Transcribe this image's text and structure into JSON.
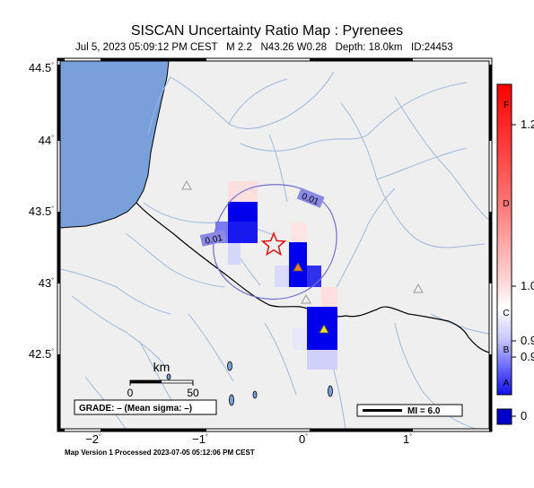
{
  "title": "SISCAN Uncertainty Ratio Map : Pyrenees",
  "subtitle": {
    "date": "Jul  5, 2023 05:09:12 PM CEST",
    "magnitude": "M 2.2",
    "location": "N43.26 W0.28",
    "depth": "Depth: 18.0km",
    "id": "ID:24453"
  },
  "footer": "Map Version 1 Processed 2023-07-05 05:12:06 PM CEST",
  "lat_labels": [
    "44.5",
    "44",
    "43.5",
    "43",
    "42.5"
  ],
  "lon_labels": [
    "−2",
    "−1",
    "0",
    "1"
  ],
  "contour_labels": [
    "0.01",
    "0.01"
  ],
  "scale": {
    "unit": "km",
    "min": "0",
    "max": "50"
  },
  "grade_text": "GRADE: – (Mean sigma: –)",
  "mi_legend": "MI = 6.0",
  "colorbar": {
    "grade_letters": [
      "F",
      "D",
      "C",
      "B",
      "A"
    ],
    "values": [
      "1.2",
      "1.0",
      "0.9",
      "0.9",
      "0"
    ]
  },
  "colors": {
    "land": "#efefef",
    "water": "#7aa0dc",
    "rivers": "#9cb8e0",
    "epicenter": "#e01010",
    "contour": "#7070d0",
    "cell_blue": "#0000ee",
    "station_active": "#f08020",
    "station_yellow": "#f0e020"
  }
}
